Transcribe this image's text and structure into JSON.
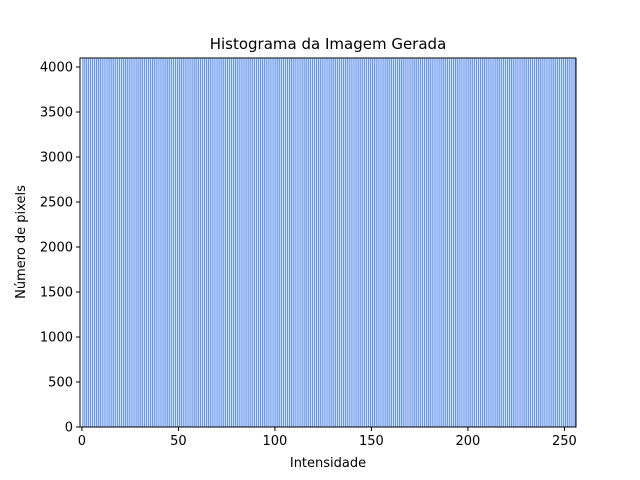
{
  "chart_data": {
    "type": "bar",
    "title": "Histograma da Imagem Gerada",
    "xlabel": "Intensidade",
    "ylabel": "Número de pixels",
    "xlim": [
      -1,
      256
    ],
    "ylim": [
      0,
      4100
    ],
    "x_ticks": [
      0,
      50,
      100,
      150,
      200,
      250
    ],
    "y_ticks": [
      0,
      500,
      1000,
      1500,
      2000,
      2500,
      3000,
      3500,
      4000
    ],
    "bar_value": 4096,
    "bins": 256,
    "bar_color": "#6495ed",
    "edge_color": "#ffffff",
    "grid": false,
    "legend": "none"
  }
}
